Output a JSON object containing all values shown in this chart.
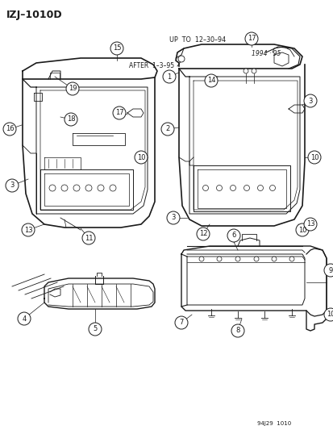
{
  "title": "IZJ–1010D",
  "bg": "#ffffff",
  "lc": "#1a1a1a",
  "fig_w": 4.14,
  "fig_h": 5.33,
  "dpi": 100,
  "after_label": "AFTER  1–3–95",
  "upto_label": "UP  TO  12–30–94",
  "year_label": "1994 · 95",
  "footer": "94J29  1010"
}
